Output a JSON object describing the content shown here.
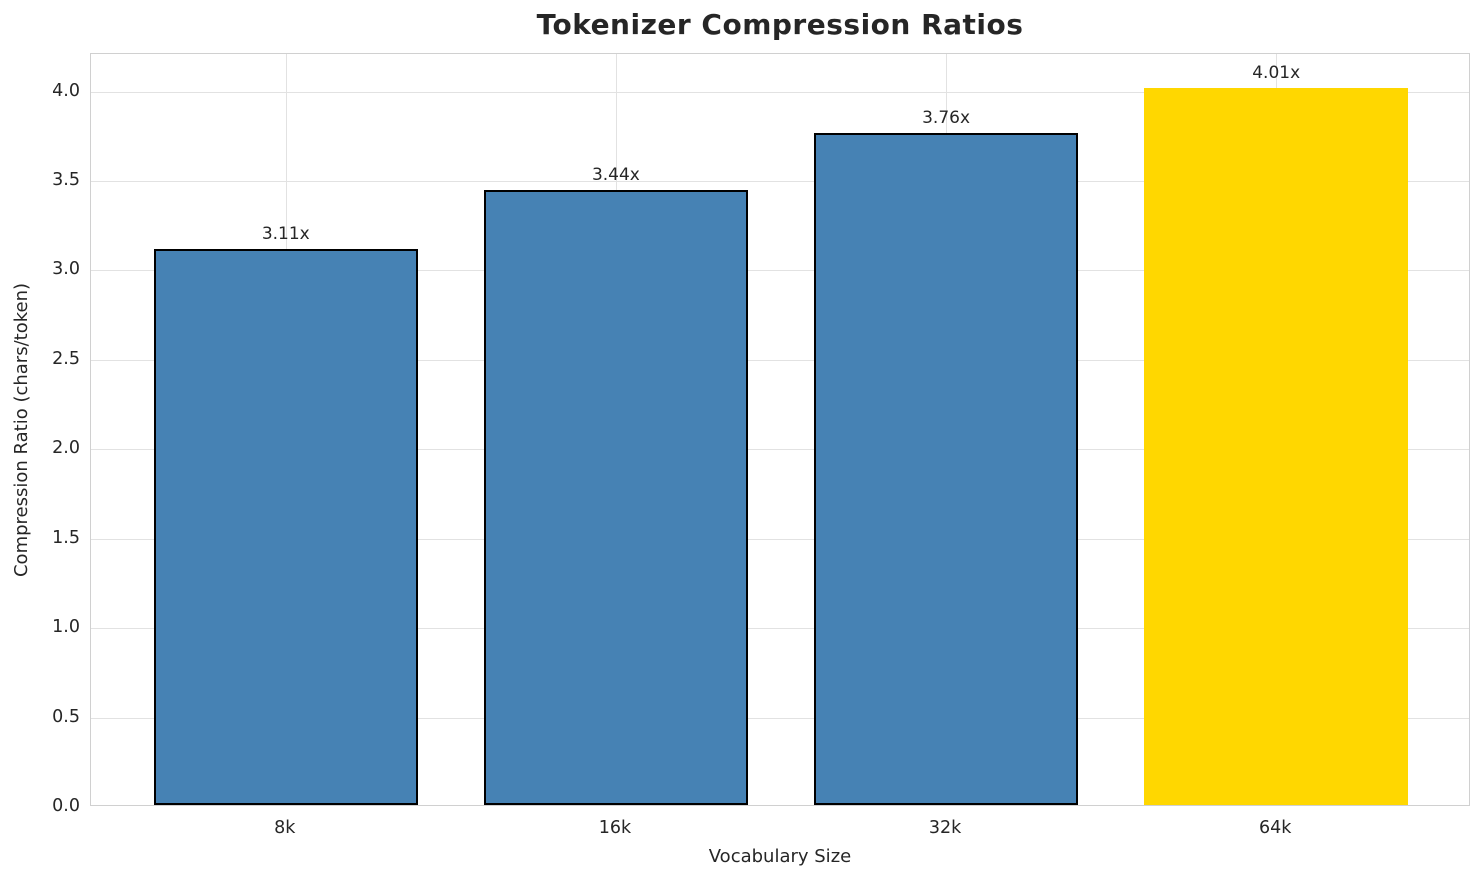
{
  "chart_data": {
    "type": "bar",
    "title": "Tokenizer Compression Ratios",
    "xlabel": "Vocabulary Size",
    "ylabel": "Compression Ratio (chars/token)",
    "categories": [
      "8k",
      "16k",
      "32k",
      "64k"
    ],
    "values": [
      3.11,
      3.44,
      3.76,
      4.01
    ],
    "value_labels": [
      "3.11x",
      "3.44x",
      "3.76x",
      "4.01x"
    ],
    "bar_colors": [
      "#4682b4",
      "#4682b4",
      "#4682b4",
      "#ffd700"
    ],
    "bar_edge_colors": [
      "#000000",
      "#000000",
      "#000000",
      "none"
    ],
    "highlight_category": "64k",
    "ylim": [
      0,
      4.21
    ],
    "yticks": [
      0.0,
      0.5,
      1.0,
      1.5,
      2.0,
      2.5,
      3.0,
      3.5,
      4.0
    ],
    "ytick_labels": [
      "0.0",
      "0.5",
      "1.0",
      "1.5",
      "2.0",
      "2.5",
      "3.0",
      "3.5",
      "4.0"
    ],
    "grid": "both",
    "legend_position": "none",
    "colors": {
      "grid": "#e2e2e2",
      "spine": "#d0d0d0",
      "text": "#262626",
      "background": "#ffffff"
    }
  }
}
